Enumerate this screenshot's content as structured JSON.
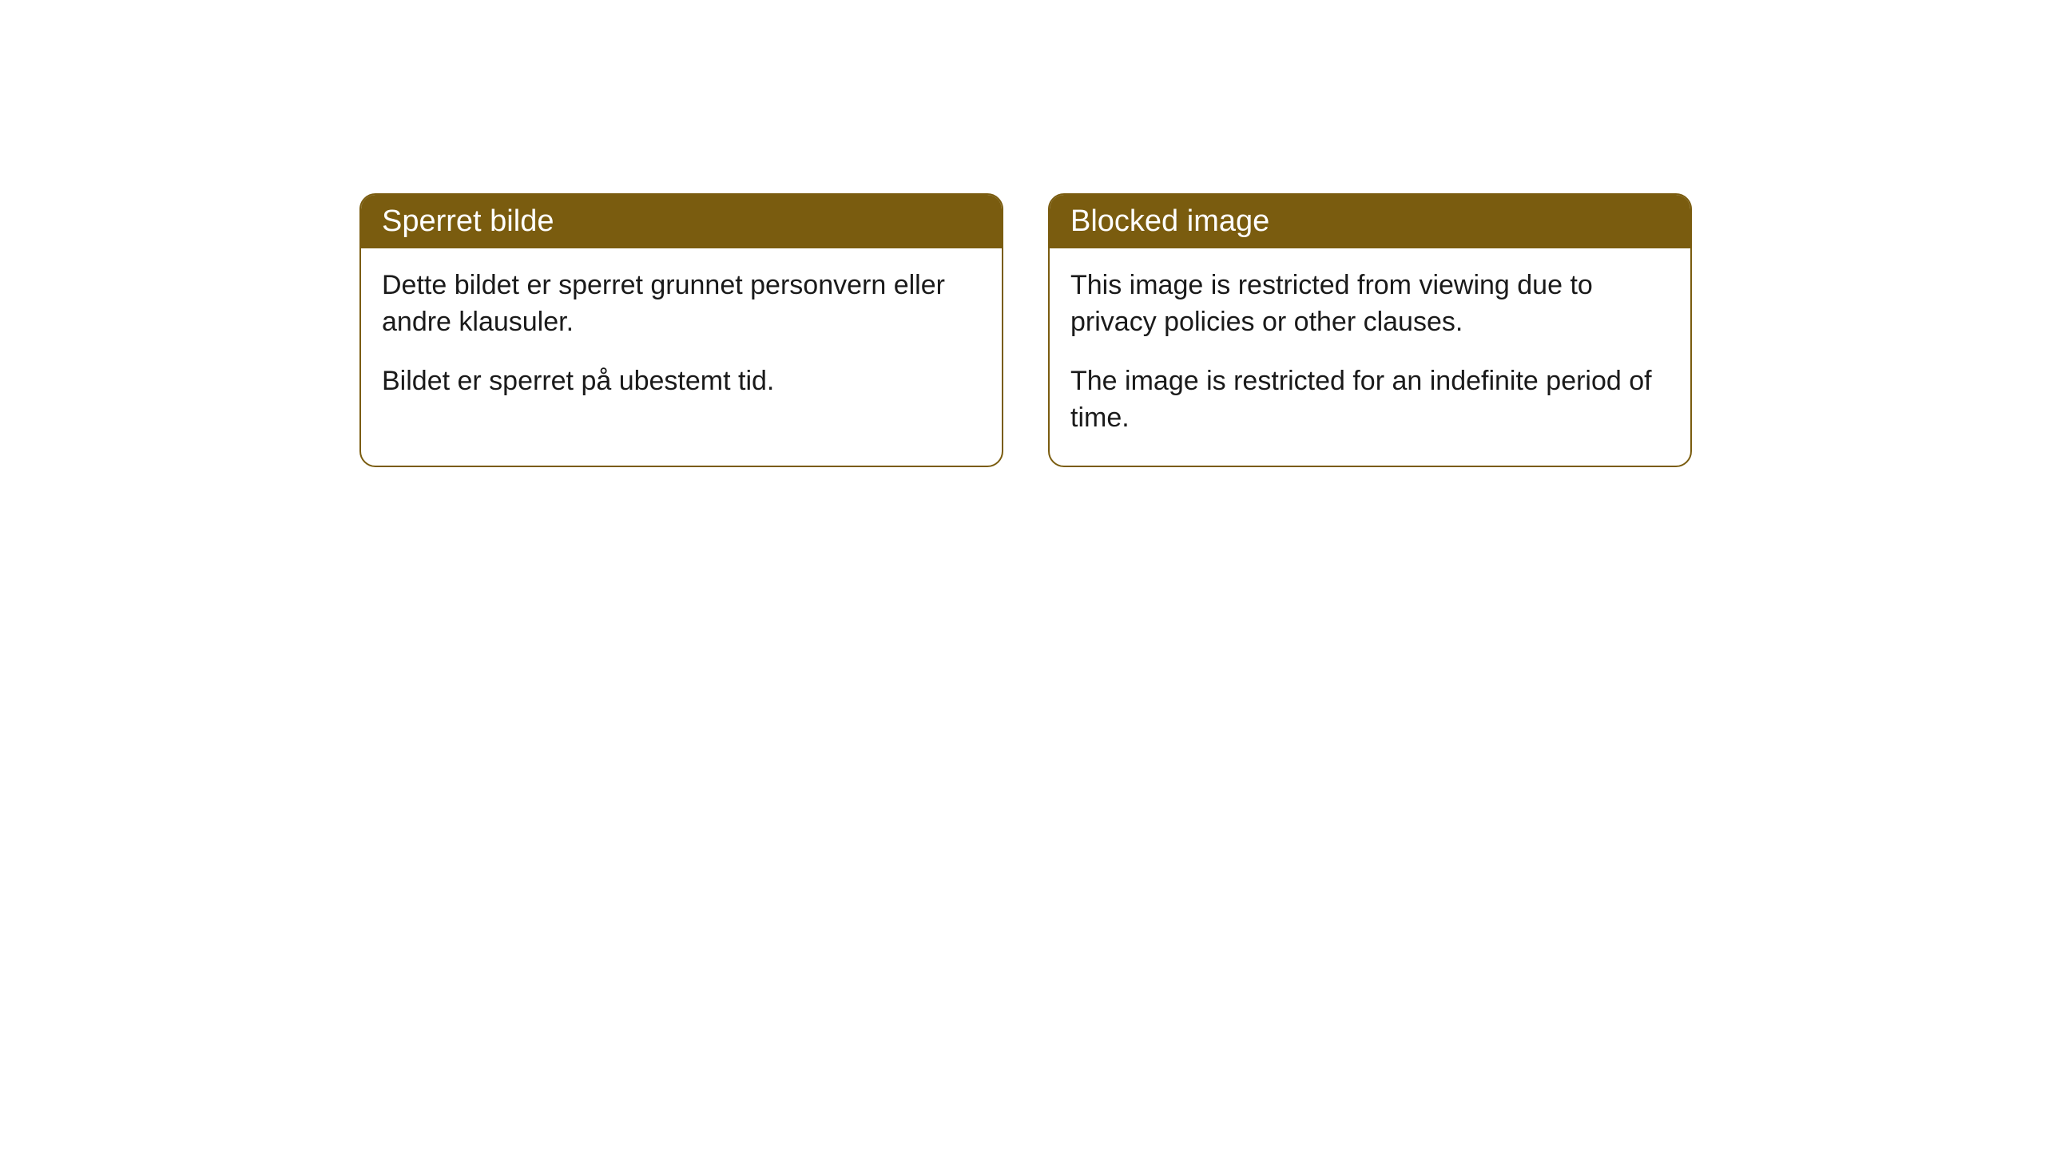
{
  "cards": [
    {
      "title": "Sperret bilde",
      "paragraph1": "Dette bildet er sperret grunnet personvern eller andre klausuler.",
      "paragraph2": "Bildet er sperret på ubestemt tid."
    },
    {
      "title": "Blocked image",
      "paragraph1": "This image is restricted from viewing due to privacy policies or other clauses.",
      "paragraph2": "The image is restricted for an indefinite period of time."
    }
  ],
  "style": {
    "header_bg": "#7a5c0f",
    "header_text": "#ffffff",
    "border_color": "#7a5c0f",
    "body_bg": "#ffffff",
    "body_text": "#1a1a1a",
    "border_radius": 20,
    "title_fontsize": 38,
    "body_fontsize": 34
  }
}
